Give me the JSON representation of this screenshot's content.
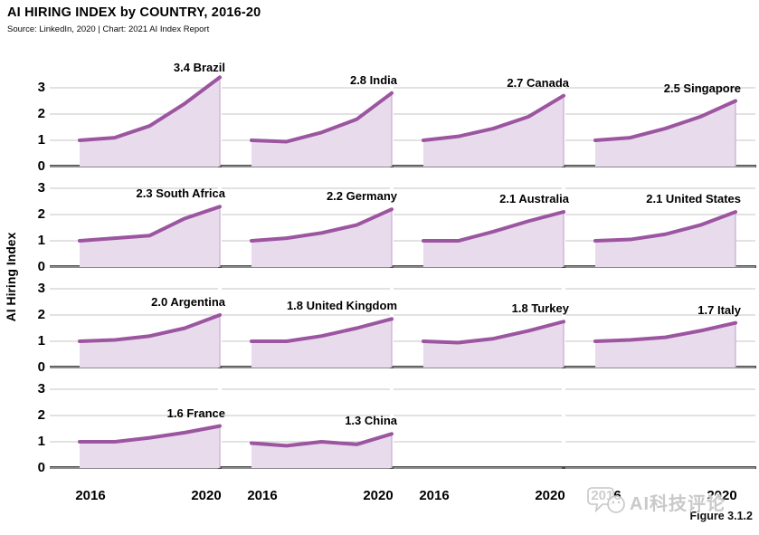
{
  "header": {
    "title": "AI HIRING INDEX by COUNTRY, 2016-20",
    "subtitle": "Source: LinkedIn, 2020 | Chart: 2021 AI Index Report"
  },
  "figure_label": "Figure 3.1.2",
  "watermark_text": "AI科技评论",
  "chart_data": {
    "type": "area",
    "title": "AI HIRING INDEX by COUNTRY, 2016-20",
    "x": [
      2016,
      2017,
      2018,
      2019,
      2020
    ],
    "x_tick_labels": [
      "2016",
      "2020"
    ],
    "ylabel": "AI Hiring Index",
    "xlabel": "",
    "y_ticks": [
      "3",
      "2",
      "1",
      "0"
    ],
    "ylim": [
      0,
      3.5
    ],
    "grid": true,
    "layout": {
      "rows": 4,
      "cols": 4
    },
    "colors": {
      "line": "#9c55a0",
      "fill": "#e8dcec",
      "fill_edge": "#cfaed6",
      "gridline": "#c6c6c6",
      "baseline": "#4d4d4d"
    },
    "series": [
      {
        "name": "Brazil",
        "label": "3.4 Brazil",
        "final": 3.4,
        "values": [
          1.0,
          1.1,
          1.55,
          2.4,
          3.4
        ]
      },
      {
        "name": "India",
        "label": "2.8 India",
        "final": 2.8,
        "values": [
          1.0,
          0.95,
          1.3,
          1.8,
          2.8
        ]
      },
      {
        "name": "Canada",
        "label": "2.7 Canada",
        "final": 2.7,
        "values": [
          1.0,
          1.15,
          1.45,
          1.9,
          2.7
        ]
      },
      {
        "name": "Singapore",
        "label": "2.5 Singapore",
        "final": 2.5,
        "values": [
          1.0,
          1.1,
          1.45,
          1.9,
          2.5
        ]
      },
      {
        "name": "South Africa",
        "label": "2.3 South Africa",
        "final": 2.3,
        "values": [
          1.0,
          1.1,
          1.2,
          1.85,
          2.3
        ]
      },
      {
        "name": "Germany",
        "label": "2.2 Germany",
        "final": 2.2,
        "values": [
          1.0,
          1.1,
          1.3,
          1.6,
          2.2
        ]
      },
      {
        "name": "Australia",
        "label": "2.1 Australia",
        "final": 2.1,
        "values": [
          1.0,
          1.0,
          1.35,
          1.75,
          2.1
        ]
      },
      {
        "name": "United States",
        "label": "2.1 United States",
        "final": 2.1,
        "values": [
          1.0,
          1.05,
          1.25,
          1.6,
          2.1
        ]
      },
      {
        "name": "Argentina",
        "label": "2.0 Argentina",
        "final": 2.0,
        "values": [
          1.0,
          1.05,
          1.2,
          1.5,
          2.0
        ]
      },
      {
        "name": "United Kingdom",
        "label": "1.8 United Kingdom",
        "final": 1.85,
        "values": [
          1.0,
          1.0,
          1.2,
          1.5,
          1.85
        ]
      },
      {
        "name": "Turkey",
        "label": "1.8 Turkey",
        "final": 1.75,
        "values": [
          1.0,
          0.95,
          1.1,
          1.4,
          1.75
        ]
      },
      {
        "name": "Italy",
        "label": "1.7 Italy",
        "final": 1.7,
        "values": [
          1.0,
          1.05,
          1.15,
          1.4,
          1.7
        ]
      },
      {
        "name": "France",
        "label": "1.6 France",
        "final": 1.6,
        "values": [
          1.0,
          1.0,
          1.15,
          1.35,
          1.6
        ]
      },
      {
        "name": "China",
        "label": "1.3 China",
        "final": 1.3,
        "values": [
          0.95,
          0.85,
          1.0,
          0.9,
          1.3
        ]
      }
    ]
  }
}
